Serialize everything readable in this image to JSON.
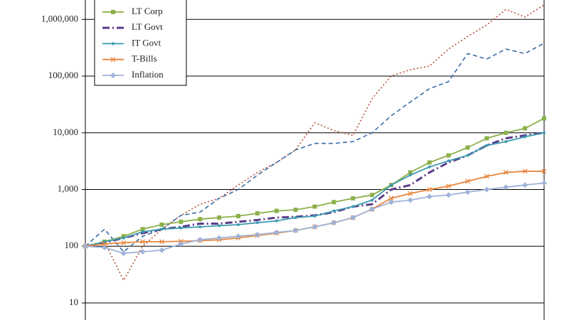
{
  "chart_data": {
    "type": "line",
    "log_scale": true,
    "grid": true,
    "ylim": [
      5,
      2200000
    ],
    "yticks": [
      10,
      100,
      {
        "value": 1000,
        "label": "1,000"
      },
      {
        "value": 10000,
        "label": "10,000"
      },
      {
        "value": 100000,
        "label": "100,000"
      },
      {
        "value": 1000000,
        "label": "1,000,000"
      }
    ],
    "legend": "upper left",
    "series": [
      {
        "color": "#b5523b",
        "dash": "dotted",
        "marker": "none",
        "values": [
          100,
          120,
          25,
          100,
          200,
          350,
          550,
          700,
          1200,
          2000,
          3000,
          5000,
          15000,
          11000,
          9000,
          40000,
          100000,
          130000,
          150000,
          300000,
          500000,
          800000,
          1500000,
          1100000,
          1800000
        ]
      },
      {
        "color": "#3a6ea5",
        "dash": "dashed",
        "marker": "none",
        "values": [
          100,
          200,
          80,
          150,
          200,
          350,
          400,
          700,
          1000,
          1800,
          3000,
          5000,
          6500,
          6500,
          7000,
          10000,
          20000,
          35000,
          60000,
          80000,
          250000,
          200000,
          300000,
          250000,
          380000
        ]
      },
      {
        "name": "LT Corp",
        "color": "#8db04a",
        "dash": "solid",
        "marker": "square",
        "values": [
          100,
          120,
          150,
          200,
          240,
          270,
          300,
          320,
          340,
          380,
          420,
          440,
          500,
          600,
          700,
          800,
          1200,
          2000,
          3000,
          4000,
          5500,
          8000,
          10000,
          12000,
          18000
        ]
      },
      {
        "name": "LT Govt",
        "color": "#5b3c8c",
        "dash": "dashdot",
        "marker": "none",
        "values": [
          100,
          115,
          140,
          170,
          200,
          220,
          250,
          250,
          270,
          290,
          320,
          330,
          350,
          400,
          500,
          550,
          1000,
          1200,
          2000,
          3000,
          4000,
          6000,
          8000,
          9000,
          10000
        ]
      },
      {
        "name": "IT Govt",
        "color": "#3a9ab0",
        "dash": "solid",
        "marker": "dot",
        "values": [
          100,
          120,
          140,
          180,
          200,
          210,
          220,
          230,
          240,
          260,
          280,
          320,
          340,
          420,
          500,
          650,
          1200,
          1800,
          2500,
          3200,
          4000,
          6000,
          7000,
          8500,
          10000
        ]
      },
      {
        "name": "T-Bills",
        "color": "#e8853a",
        "dash": "solid",
        "marker": "x",
        "values": [
          100,
          110,
          115,
          120,
          120,
          122,
          125,
          130,
          140,
          155,
          170,
          190,
          220,
          260,
          320,
          450,
          700,
          850,
          1000,
          1150,
          1400,
          1700,
          2000,
          2100,
          2100
        ]
      },
      {
        "name": "Inflation",
        "color": "#9fb3d9",
        "dash": "solid",
        "marker": "diamond",
        "values": [
          100,
          95,
          75,
          80,
          85,
          110,
          130,
          140,
          150,
          160,
          175,
          190,
          220,
          260,
          320,
          450,
          600,
          650,
          750,
          800,
          900,
          1000,
          1100,
          1200,
          1300
        ]
      }
    ]
  }
}
